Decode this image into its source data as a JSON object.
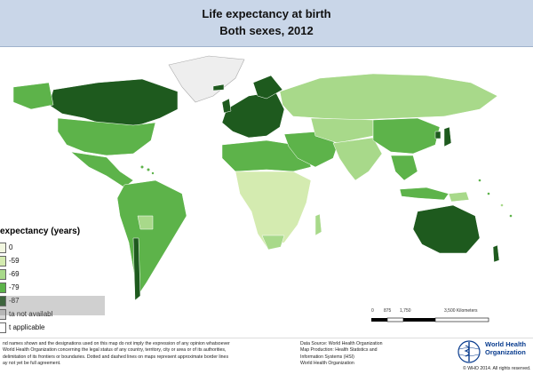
{
  "header": {
    "title_line1": "Life expectancy at birth",
    "title_line2": "Both sexes, 2012"
  },
  "legend": {
    "title": "expectancy (years)",
    "items": [
      {
        "label": "0",
        "color": "#f2f7e0"
      },
      {
        "label": "-59",
        "color": "#d4ebb0"
      },
      {
        "label": "-69",
        "color": "#a8d98a"
      },
      {
        "label": "-79",
        "color": "#5db34a"
      },
      {
        "label": "-87",
        "color": "#1e5a1e"
      },
      {
        "label": "ta not availabl",
        "color": "#d8d8d8"
      },
      {
        "label": "t applicable",
        "color": "#ffffff"
      }
    ]
  },
  "scale": {
    "labels": [
      "0",
      "875",
      "1,750",
      "3,500 Kilometers"
    ]
  },
  "footer": {
    "disclaimer_lines": [
      "nd names shown and the designations used on this map do not imply the expression of any opinion whatsoever",
      "World Health Organization concerning the legal status of any country, territory, city or area or of its authorities,",
      "delimitation of its frontiers or boundaries. Dotted and dashed lines on maps represent approximate border lines",
      "ay not yet be full agreement."
    ],
    "source_lines": [
      "Data Source: World Health Organization",
      "Map Production: Health Statistics and",
      "Information Systems (HSI)",
      "World Health Organization"
    ],
    "org_line1": "World Health",
    "org_line2": "Organization",
    "copyright": "© WHO 2014. All rights reserved."
  },
  "colors": {
    "header_bg": "#c9d6e8",
    "ocean": "#ffffff",
    "greenland": "#f0f0f0"
  }
}
